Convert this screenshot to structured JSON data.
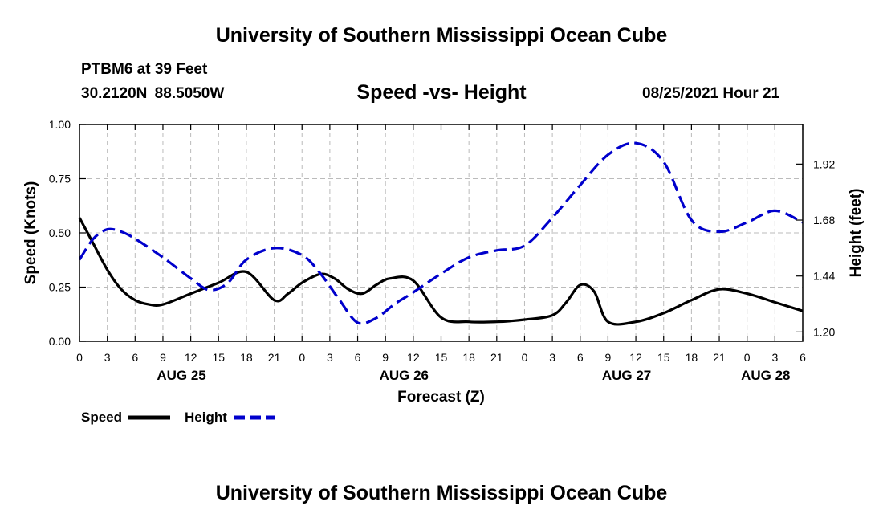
{
  "header": {
    "title": "University of Southern Mississippi Ocean Cube",
    "station": "PTBM6 at 39 Feet",
    "coordinates": "30.2120N  88.5050W",
    "chart_title": "Speed -vs- Height",
    "datetime": "08/25/2021 Hour 21"
  },
  "footer": {
    "title": "University of Southern Mississippi Ocean Cube"
  },
  "colors": {
    "speed": "#000000",
    "height": "#0000cc",
    "grid": "#bbbbbb"
  },
  "chart_data": {
    "type": "line",
    "title": "Speed -vs- Height",
    "xlabel": "Forecast (Z)",
    "ylabel": "Speed (Knots)",
    "y2label": "Height (feet)",
    "xlim": [
      0,
      78
    ],
    "ylim": [
      0,
      1.0
    ],
    "y2lim": [
      1.16,
      2.09
    ],
    "x_ticks": [
      0,
      3,
      6,
      9,
      12,
      15,
      18,
      21,
      24,
      27,
      30,
      33,
      36,
      39,
      42,
      45,
      48,
      51,
      54,
      57,
      60,
      63,
      66,
      69,
      72,
      75,
      78
    ],
    "x_tick_labels": [
      "0",
      "3",
      "6",
      "9",
      "12",
      "15",
      "18",
      "21",
      "0",
      "3",
      "6",
      "9",
      "12",
      "15",
      "18",
      "21",
      "0",
      "3",
      "6",
      "9",
      "12",
      "15",
      "18",
      "21",
      "0",
      "3",
      "6"
    ],
    "day_labels": [
      {
        "x": 11,
        "label": "AUG 25"
      },
      {
        "x": 35,
        "label": "AUG 26"
      },
      {
        "x": 59,
        "label": "AUG 27"
      },
      {
        "x": 74,
        "label": "AUG 28"
      }
    ],
    "y_ticks": [
      0,
      0.25,
      0.5,
      0.75,
      1.0
    ],
    "y_tick_labels": [
      "0.00",
      "0.25",
      "0.50",
      "0.75",
      "1.00"
    ],
    "y2_ticks": [
      1.2,
      1.44,
      1.68,
      1.92
    ],
    "y2_tick_labels": [
      "1.20",
      "1.44",
      "1.68",
      "1.92"
    ],
    "series": [
      {
        "name": "Speed",
        "axis": "left",
        "style": "solid",
        "x": [
          0,
          1.5,
          3,
          4.5,
          6,
          7.5,
          9,
          12,
          15,
          18,
          21,
          22.5,
          24,
          26,
          27.5,
          29,
          30.5,
          32,
          33.5,
          36,
          39,
          42,
          45,
          48,
          51,
          52.5,
          54,
          55.5,
          57,
          60,
          63,
          66,
          69,
          72,
          75,
          78
        ],
        "y": [
          0.57,
          0.45,
          0.33,
          0.24,
          0.19,
          0.17,
          0.17,
          0.22,
          0.27,
          0.32,
          0.19,
          0.22,
          0.27,
          0.31,
          0.29,
          0.24,
          0.22,
          0.26,
          0.29,
          0.28,
          0.11,
          0.09,
          0.09,
          0.1,
          0.12,
          0.18,
          0.26,
          0.23,
          0.09,
          0.09,
          0.13,
          0.19,
          0.24,
          0.22,
          0.18,
          0.14
        ]
      },
      {
        "name": "Height",
        "axis": "right",
        "style": "dashed",
        "x": [
          0,
          1.5,
          3,
          4.5,
          6,
          9,
          12,
          14,
          16,
          18,
          21,
          24,
          26,
          28,
          30,
          32,
          34,
          36,
          39,
          42,
          45,
          48,
          51,
          54,
          57,
          60,
          63,
          66,
          69,
          72,
          75,
          78
        ],
        "y": [
          1.51,
          1.6,
          1.64,
          1.63,
          1.6,
          1.52,
          1.43,
          1.38,
          1.41,
          1.51,
          1.56,
          1.53,
          1.45,
          1.34,
          1.24,
          1.26,
          1.32,
          1.37,
          1.45,
          1.52,
          1.55,
          1.57,
          1.69,
          1.83,
          1.96,
          2.01,
          1.93,
          1.68,
          1.63,
          1.67,
          1.72,
          1.67
        ]
      }
    ],
    "legend": [
      {
        "label": "Speed",
        "style": "solid"
      },
      {
        "label": "Height",
        "style": "dashed"
      }
    ],
    "grid": true,
    "legend_position": "bottom-left"
  }
}
